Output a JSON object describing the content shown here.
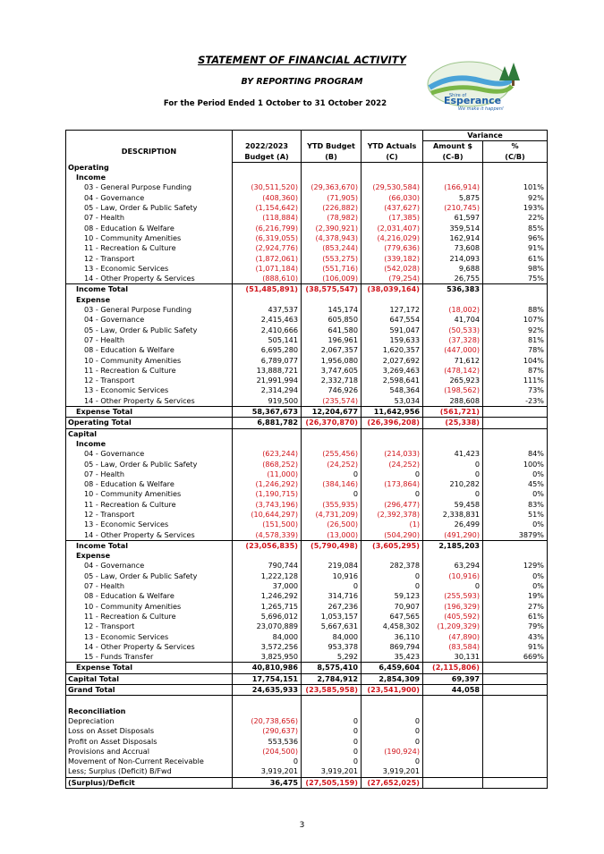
{
  "header": {
    "title": "STATEMENT OF FINANCIAL ACTIVITY",
    "subtitle": "BY REPORTING PROGRAM",
    "period": "For the Period Ended 1 October to 31 October 2022"
  },
  "logo": {
    "text_top": "Shire of",
    "text_main": "Esperance",
    "tagline": "We make it happen!",
    "brand_color": "#1f5fa8",
    "accent_color": "#4aa3d8"
  },
  "columns": {
    "variance": "Variance",
    "description": "DESCRIPTION",
    "budget_l1": "2022/2023",
    "budget_l2": "Budget (A)",
    "ytd_budget_l1": "YTD Budget",
    "ytd_budget_l2": "(B)",
    "ytd_actuals_l1": "YTD Actuals",
    "ytd_actuals_l2": "(C)",
    "amount_l1": "Amount $",
    "amount_l2": "(C-B)",
    "pct_l1": "%",
    "pct_l2": "(C/B)"
  },
  "rows": [
    {
      "t": "section",
      "label": "Operating"
    },
    {
      "t": "sub",
      "label": "Income"
    },
    {
      "t": "item",
      "label": "03 - General Purpose Funding",
      "v": [
        "(30,511,520)",
        "(29,363,670)",
        "(29,530,584)",
        "(166,914)",
        "101%"
      ]
    },
    {
      "t": "item",
      "label": "04 - Governance",
      "v": [
        "(408,360)",
        "(71,905)",
        "(66,030)",
        "5,875",
        "92%"
      ]
    },
    {
      "t": "item",
      "label": "05 - Law, Order & Public Safety",
      "v": [
        "(1,154,642)",
        "(226,882)",
        "(437,627)",
        "(210,745)",
        "193%"
      ]
    },
    {
      "t": "item",
      "label": "07 - Health",
      "v": [
        "(118,884)",
        "(78,982)",
        "(17,385)",
        "61,597",
        "22%"
      ]
    },
    {
      "t": "item",
      "label": "08 - Education & Welfare",
      "v": [
        "(6,216,799)",
        "(2,390,921)",
        "(2,031,407)",
        "359,514",
        "85%"
      ]
    },
    {
      "t": "item",
      "label": "10 - Community Amenities",
      "v": [
        "(6,319,055)",
        "(4,378,943)",
        "(4,216,029)",
        "162,914",
        "96%"
      ]
    },
    {
      "t": "item",
      "label": "11 - Recreation & Culture",
      "v": [
        "(2,924,776)",
        "(853,244)",
        "(779,636)",
        "73,608",
        "91%"
      ]
    },
    {
      "t": "item",
      "label": "12 - Transport",
      "v": [
        "(1,872,061)",
        "(553,275)",
        "(339,182)",
        "214,093",
        "61%"
      ]
    },
    {
      "t": "item",
      "label": "13 - Economic Services",
      "v": [
        "(1,071,184)",
        "(551,716)",
        "(542,028)",
        "9,688",
        "98%"
      ]
    },
    {
      "t": "item",
      "label": "14 - Other Property & Services",
      "v": [
        "(888,610)",
        "(106,009)",
        "(79,254)",
        "26,755",
        "75%"
      ]
    },
    {
      "t": "total",
      "label": "Income  Total",
      "v": [
        "(51,485,891)",
        "(38,575,547)",
        "(38,039,164)",
        "536,383",
        ""
      ]
    },
    {
      "t": "sub",
      "label": "Expense"
    },
    {
      "t": "item",
      "label": "03 - General Purpose Funding",
      "v": [
        "437,537",
        "145,174",
        "127,172",
        "(18,002)",
        "88%"
      ]
    },
    {
      "t": "item",
      "label": "04 - Governance",
      "v": [
        "2,415,463",
        "605,850",
        "647,554",
        "41,704",
        "107%"
      ]
    },
    {
      "t": "item",
      "label": "05 - Law, Order & Public Safety",
      "v": [
        "2,410,666",
        "641,580",
        "591,047",
        "(50,533)",
        "92%"
      ]
    },
    {
      "t": "item",
      "label": "07 - Health",
      "v": [
        "505,141",
        "196,961",
        "159,633",
        "(37,328)",
        "81%"
      ]
    },
    {
      "t": "item",
      "label": "08 - Education & Welfare",
      "v": [
        "6,695,280",
        "2,067,357",
        "1,620,357",
        "(447,000)",
        "78%"
      ]
    },
    {
      "t": "item",
      "label": "10 - Community Amenities",
      "v": [
        "6,789,077",
        "1,956,080",
        "2,027,692",
        "71,612",
        "104%"
      ]
    },
    {
      "t": "item",
      "label": "11 - Recreation & Culture",
      "v": [
        "13,888,721",
        "3,747,605",
        "3,269,463",
        "(478,142)",
        "87%"
      ]
    },
    {
      "t": "item",
      "label": "12 - Transport",
      "v": [
        "21,991,994",
        "2,332,718",
        "2,598,641",
        "265,923",
        "111%"
      ]
    },
    {
      "t": "item",
      "label": "13 - Economic Services",
      "v": [
        "2,314,294",
        "746,926",
        "548,364",
        "(198,562)",
        "73%"
      ]
    },
    {
      "t": "item",
      "label": "14 - Other Property & Services",
      "v": [
        "919,500",
        "(235,574)",
        "53,034",
        "288,608",
        "-23%"
      ]
    },
    {
      "t": "total",
      "label": "Expense  Total",
      "v": [
        "58,367,673",
        "12,204,677",
        "11,642,956",
        "(561,721)",
        ""
      ]
    },
    {
      "t": "grand",
      "label": "Operating  Total",
      "v": [
        "6,881,782",
        "(26,370,870)",
        "(26,396,208)",
        "(25,338)",
        ""
      ]
    },
    {
      "t": "section",
      "label": "Capital"
    },
    {
      "t": "sub",
      "label": "Income"
    },
    {
      "t": "item",
      "label": "04 - Governance",
      "v": [
        "(623,244)",
        "(255,456)",
        "(214,033)",
        "41,423",
        "84%"
      ]
    },
    {
      "t": "item",
      "label": "05 - Law, Order & Public Safety",
      "v": [
        "(868,252)",
        "(24,252)",
        "(24,252)",
        "0",
        "100%"
      ]
    },
    {
      "t": "item",
      "label": "07 - Health",
      "v": [
        "(11,000)",
        "0",
        "0",
        "0",
        "0%"
      ]
    },
    {
      "t": "item",
      "label": "08 - Education & Welfare",
      "v": [
        "(1,246,292)",
        "(384,146)",
        "(173,864)",
        "210,282",
        "45%"
      ]
    },
    {
      "t": "item",
      "label": "10 - Community Amenities",
      "v": [
        "(1,190,715)",
        "0",
        "0",
        "0",
        "0%"
      ]
    },
    {
      "t": "item",
      "label": "11 - Recreation & Culture",
      "v": [
        "(3,743,196)",
        "(355,935)",
        "(296,477)",
        "59,458",
        "83%"
      ]
    },
    {
      "t": "item",
      "label": "12 - Transport",
      "v": [
        "(10,644,297)",
        "(4,731,209)",
        "(2,392,378)",
        "2,338,831",
        "51%"
      ]
    },
    {
      "t": "item",
      "label": "13 - Economic Services",
      "v": [
        "(151,500)",
        "(26,500)",
        "(1)",
        "26,499",
        "0%"
      ]
    },
    {
      "t": "item",
      "label": "14 - Other Property & Services",
      "v": [
        "(4,578,339)",
        "(13,000)",
        "(504,290)",
        "(491,290)",
        "3879%"
      ]
    },
    {
      "t": "total",
      "label": "Income  Total",
      "v": [
        "(23,056,835)",
        "(5,790,498)",
        "(3,605,295)",
        "2,185,203",
        ""
      ]
    },
    {
      "t": "sub",
      "label": "Expense"
    },
    {
      "t": "item",
      "label": "04 - Governance",
      "v": [
        "790,744",
        "219,084",
        "282,378",
        "63,294",
        "129%"
      ]
    },
    {
      "t": "item",
      "label": "05 - Law, Order & Public Safety",
      "v": [
        "1,222,128",
        "10,916",
        "0",
        "(10,916)",
        "0%"
      ]
    },
    {
      "t": "item",
      "label": "07 - Health",
      "v": [
        "37,000",
        "0",
        "0",
        "0",
        "0%"
      ]
    },
    {
      "t": "item",
      "label": "08 - Education & Welfare",
      "v": [
        "1,246,292",
        "314,716",
        "59,123",
        "(255,593)",
        "19%"
      ]
    },
    {
      "t": "item",
      "label": "10 - Community Amenities",
      "v": [
        "1,265,715",
        "267,236",
        "70,907",
        "(196,329)",
        "27%"
      ]
    },
    {
      "t": "item",
      "label": "11 - Recreation & Culture",
      "v": [
        "5,696,012",
        "1,053,157",
        "647,565",
        "(405,592)",
        "61%"
      ]
    },
    {
      "t": "item",
      "label": "12 - Transport",
      "v": [
        "23,070,889",
        "5,667,631",
        "4,458,302",
        "(1,209,329)",
        "79%"
      ]
    },
    {
      "t": "item",
      "label": "13 - Economic Services",
      "v": [
        "84,000",
        "84,000",
        "36,110",
        "(47,890)",
        "43%"
      ]
    },
    {
      "t": "item",
      "label": "14 - Other Property & Services",
      "v": [
        "3,572,256",
        "953,378",
        "869,794",
        "(83,584)",
        "91%"
      ]
    },
    {
      "t": "item",
      "label": "15 - Funds Transfer",
      "v": [
        "3,825,950",
        "5,292",
        "35,423",
        "30,131",
        "669%"
      ]
    },
    {
      "t": "total",
      "label": "Expense  Total",
      "v": [
        "40,810,986",
        "8,575,410",
        "6,459,604",
        "(2,115,806)",
        ""
      ]
    },
    {
      "t": "grand",
      "label": "Capital Total",
      "v": [
        "17,754,151",
        "2,784,912",
        "2,854,309",
        "69,397",
        ""
      ]
    },
    {
      "t": "grandfinal",
      "label": "Grand Total",
      "v": [
        "24,635,933",
        "(23,585,958)",
        "(23,541,900)",
        "44,058",
        ""
      ]
    },
    {
      "t": "blank"
    },
    {
      "t": "section",
      "label": "Reconciliation"
    },
    {
      "t": "rec",
      "label": "Depreciation",
      "v": [
        "(20,738,656)",
        "0",
        "0"
      ]
    },
    {
      "t": "rec",
      "label": "Loss on Asset Disposals",
      "v": [
        "(290,637)",
        "0",
        "0"
      ]
    },
    {
      "t": "rec",
      "label": "Profit on Asset Disposals",
      "v": [
        "553,536",
        "0",
        "0"
      ]
    },
    {
      "t": "rec",
      "label": "Provisions and Accrual",
      "v": [
        "(204,500)",
        "0",
        "(190,924)"
      ]
    },
    {
      "t": "rec",
      "label": "Movement of Non-Current Receivable",
      "v": [
        "0",
        "0",
        "0"
      ]
    },
    {
      "t": "rec",
      "label": "Less; Surplus (Deficit) B/Fwd",
      "v": [
        "3,919,201",
        "3,919,201",
        "3,919,201"
      ]
    },
    {
      "t": "recfinal",
      "label": "(Surplus)/Deficit",
      "v": [
        "36,475",
        "(27,505,159)",
        "(27,652,025)"
      ]
    }
  ],
  "footer": {
    "page_number": "3"
  }
}
